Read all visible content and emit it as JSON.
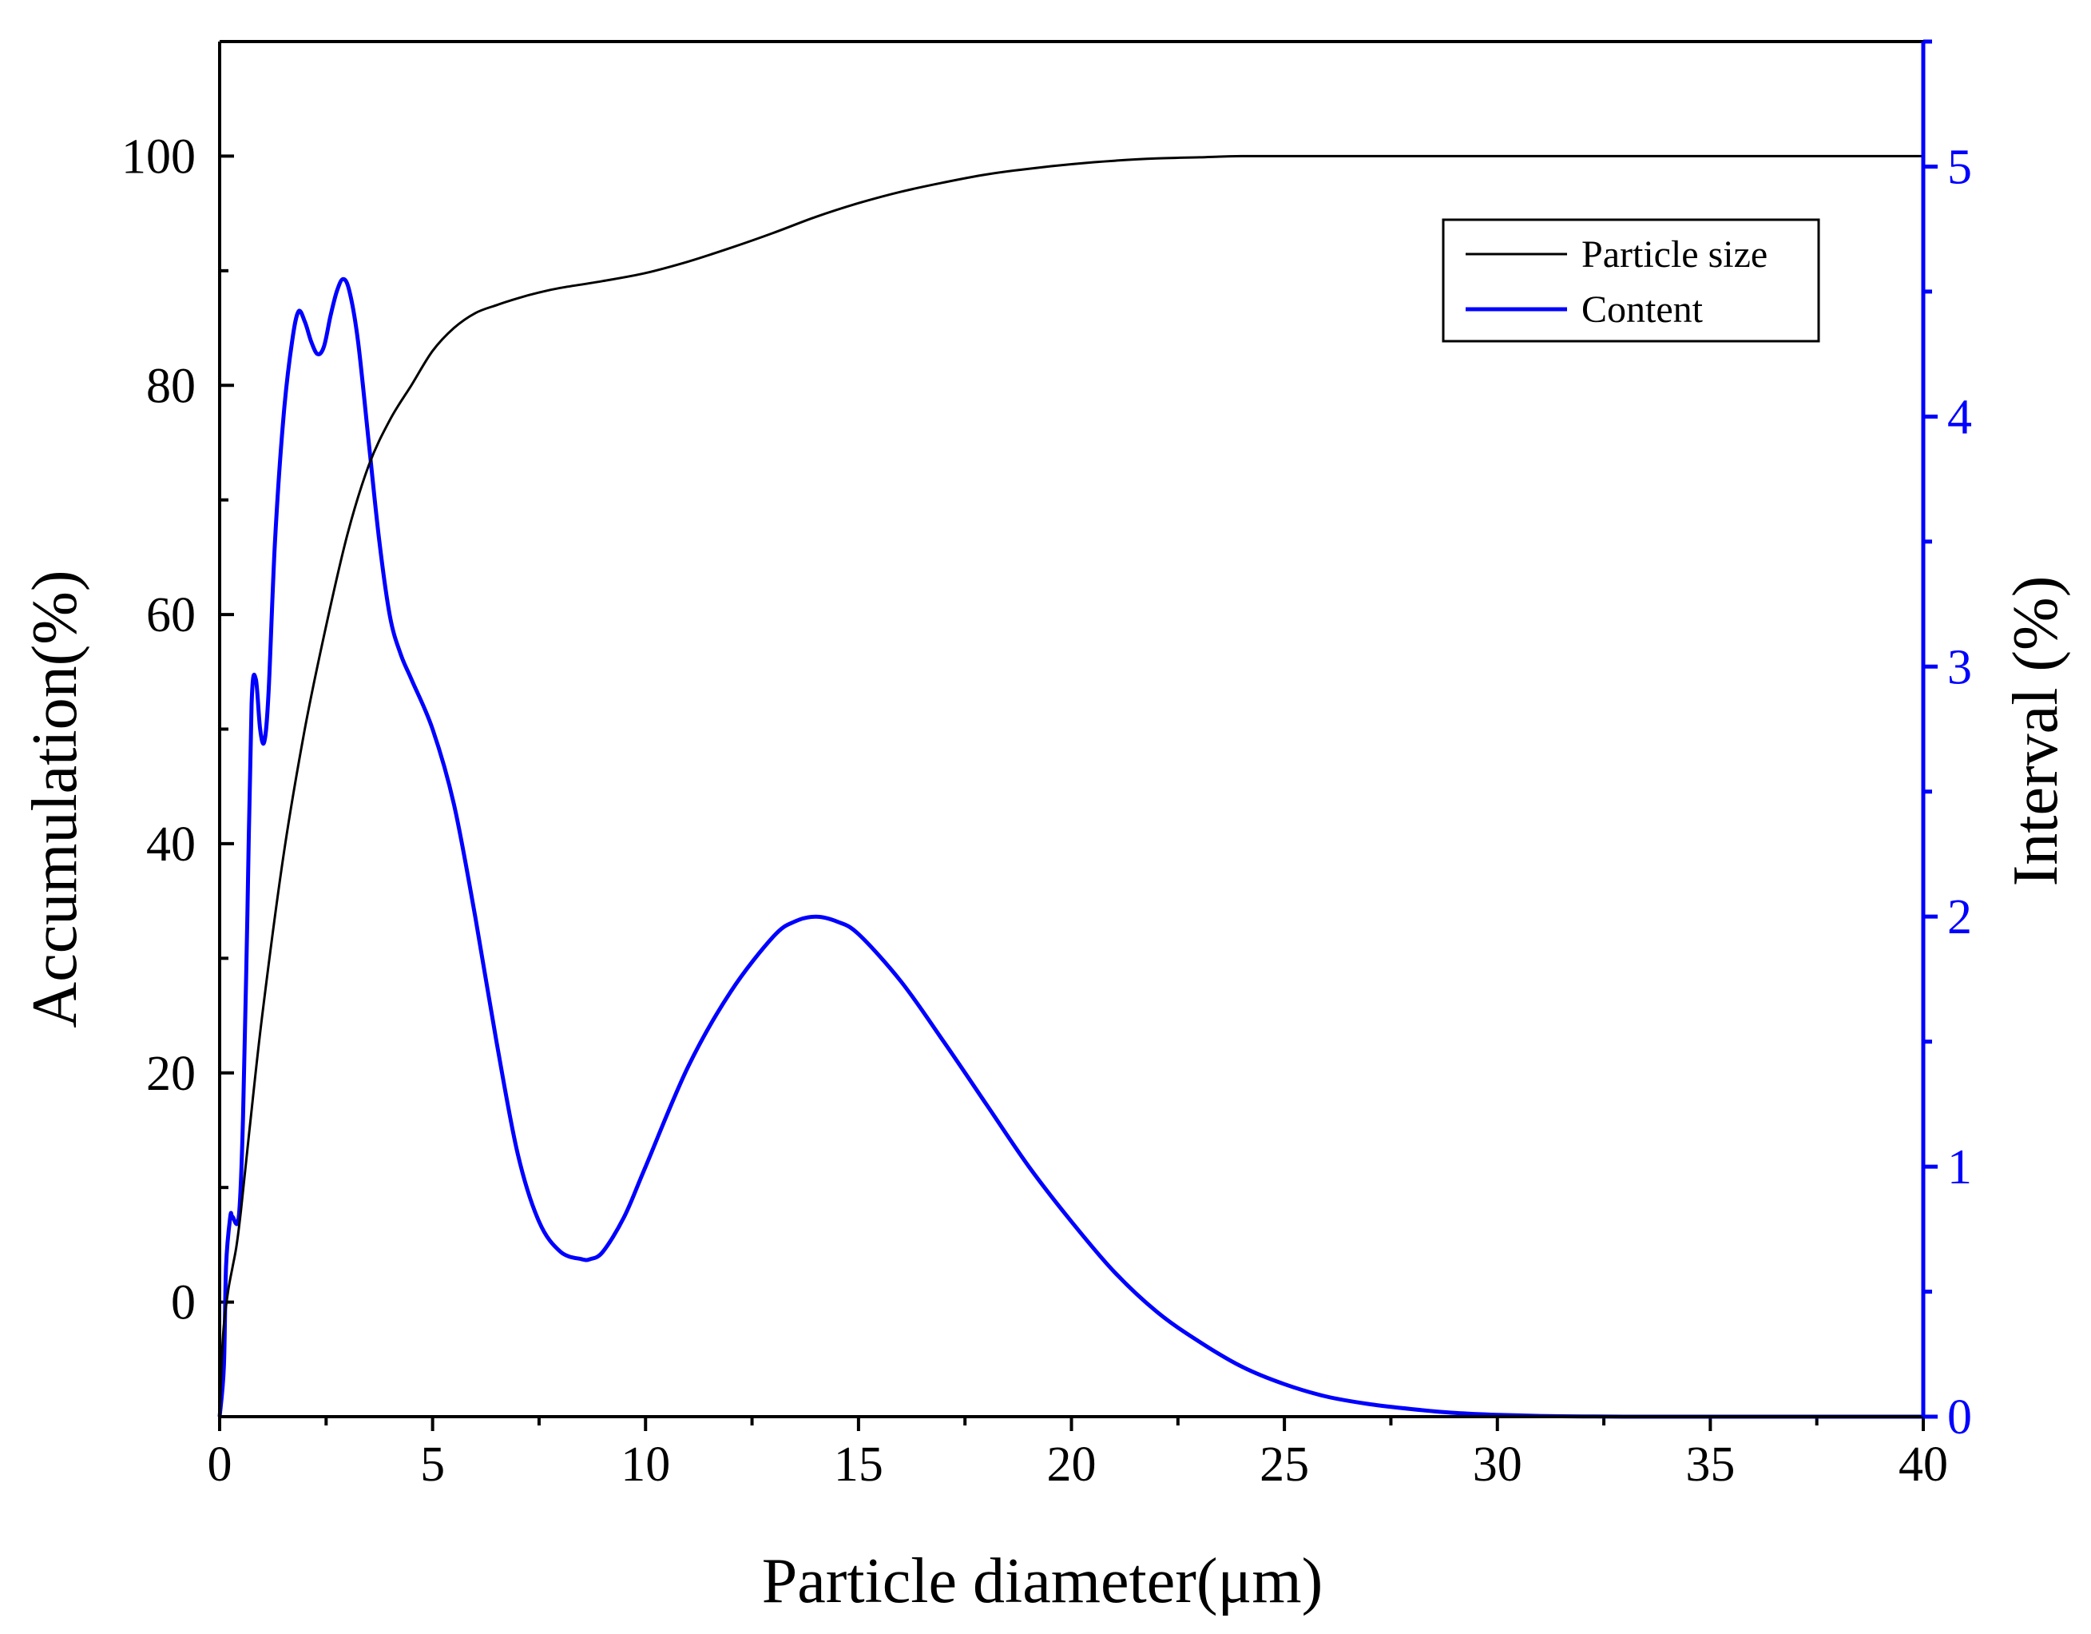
{
  "chart_data": {
    "type": "line",
    "title": "",
    "xlabel": "Particle diameter(μm)",
    "ylabel": "Accumulation(%)",
    "y2label": "Interval (%)",
    "xlim": [
      0,
      40
    ],
    "ylim": [
      -10,
      110
    ],
    "y2lim": [
      0,
      5.5
    ],
    "x_ticks": [
      0,
      5,
      10,
      15,
      20,
      25,
      30,
      35,
      40
    ],
    "y_ticks": [
      0,
      20,
      40,
      60,
      80,
      100
    ],
    "y2_ticks": [
      0,
      1,
      2,
      3,
      4,
      5
    ],
    "grid": false,
    "legend_position": "top-right",
    "colors": {
      "accumulation": "#000000",
      "interval": "#0000ff",
      "axis": "#000000"
    },
    "series": [
      {
        "name": "Particle size",
        "axis": "left",
        "color": "#000000",
        "x": [
          0,
          0.05,
          0.1,
          0.2,
          0.3,
          0.4,
          0.5,
          0.7,
          1.0,
          1.5,
          2.0,
          2.5,
          3.0,
          3.5,
          4.0,
          4.5,
          5.0,
          5.5,
          6.0,
          6.5,
          7.0,
          7.5,
          8.0,
          9.0,
          10.0,
          11.0,
          12.0,
          13.0,
          14.0,
          15.0,
          16.0,
          17.0,
          18.0,
          19.0,
          20.0,
          21.0,
          22.0,
          23.0,
          24.0,
          26.0,
          30.0,
          35.0,
          40.0
        ],
        "values": [
          -10,
          -5,
          -2,
          1,
          3,
          5,
          8,
          15,
          25,
          39,
          50,
          59,
          67,
          73,
          77,
          80,
          83,
          85,
          86.3,
          87.0,
          87.6,
          88.1,
          88.5,
          89.1,
          89.8,
          90.8,
          92.0,
          93.3,
          94.7,
          95.9,
          96.9,
          97.7,
          98.4,
          98.9,
          99.3,
          99.6,
          99.8,
          99.9,
          100,
          100,
          100,
          100,
          100
        ]
      },
      {
        "name": "Content",
        "axis": "right",
        "color": "#0000ff",
        "x": [
          0,
          0.1,
          0.15,
          0.25,
          0.3,
          0.45,
          0.55,
          0.65,
          0.75,
          0.85,
          0.95,
          1.05,
          1.15,
          1.3,
          1.5,
          1.7,
          1.85,
          2.0,
          2.15,
          2.3,
          2.45,
          2.6,
          2.75,
          2.9,
          3.05,
          3.25,
          3.5,
          3.75,
          4.0,
          4.25,
          4.5,
          5.0,
          5.5,
          6.0,
          6.5,
          7.0,
          7.5,
          8.0,
          8.5,
          8.7,
          9.0,
          9.5,
          10.0,
          11.0,
          12.0,
          13.0,
          13.5,
          14.0,
          14.5,
          15.0,
          16.0,
          17.0,
          18.0,
          19.0,
          20.0,
          21.0,
          22.0,
          23.0,
          24.0,
          25.0,
          26.0,
          27.0,
          28.0,
          29.0,
          30.0,
          31.0,
          32.0,
          33.0,
          35.0,
          40.0
        ],
        "values": [
          0,
          0.2,
          0.6,
          0.8,
          0.8,
          0.8,
          1.2,
          2.0,
          2.85,
          2.95,
          2.75,
          2.7,
          2.9,
          3.5,
          4.0,
          4.3,
          4.42,
          4.38,
          4.3,
          4.25,
          4.28,
          4.4,
          4.5,
          4.55,
          4.5,
          4.3,
          3.9,
          3.5,
          3.2,
          3.05,
          2.95,
          2.75,
          2.45,
          2.0,
          1.5,
          1.05,
          0.78,
          0.66,
          0.63,
          0.63,
          0.66,
          0.8,
          1.0,
          1.4,
          1.7,
          1.92,
          1.98,
          2.0,
          1.98,
          1.93,
          1.74,
          1.5,
          1.25,
          1.0,
          0.78,
          0.58,
          0.42,
          0.3,
          0.2,
          0.13,
          0.08,
          0.05,
          0.03,
          0.015,
          0.007,
          0.003,
          0.001,
          0.0,
          0.0,
          0.0
        ]
      }
    ]
  }
}
